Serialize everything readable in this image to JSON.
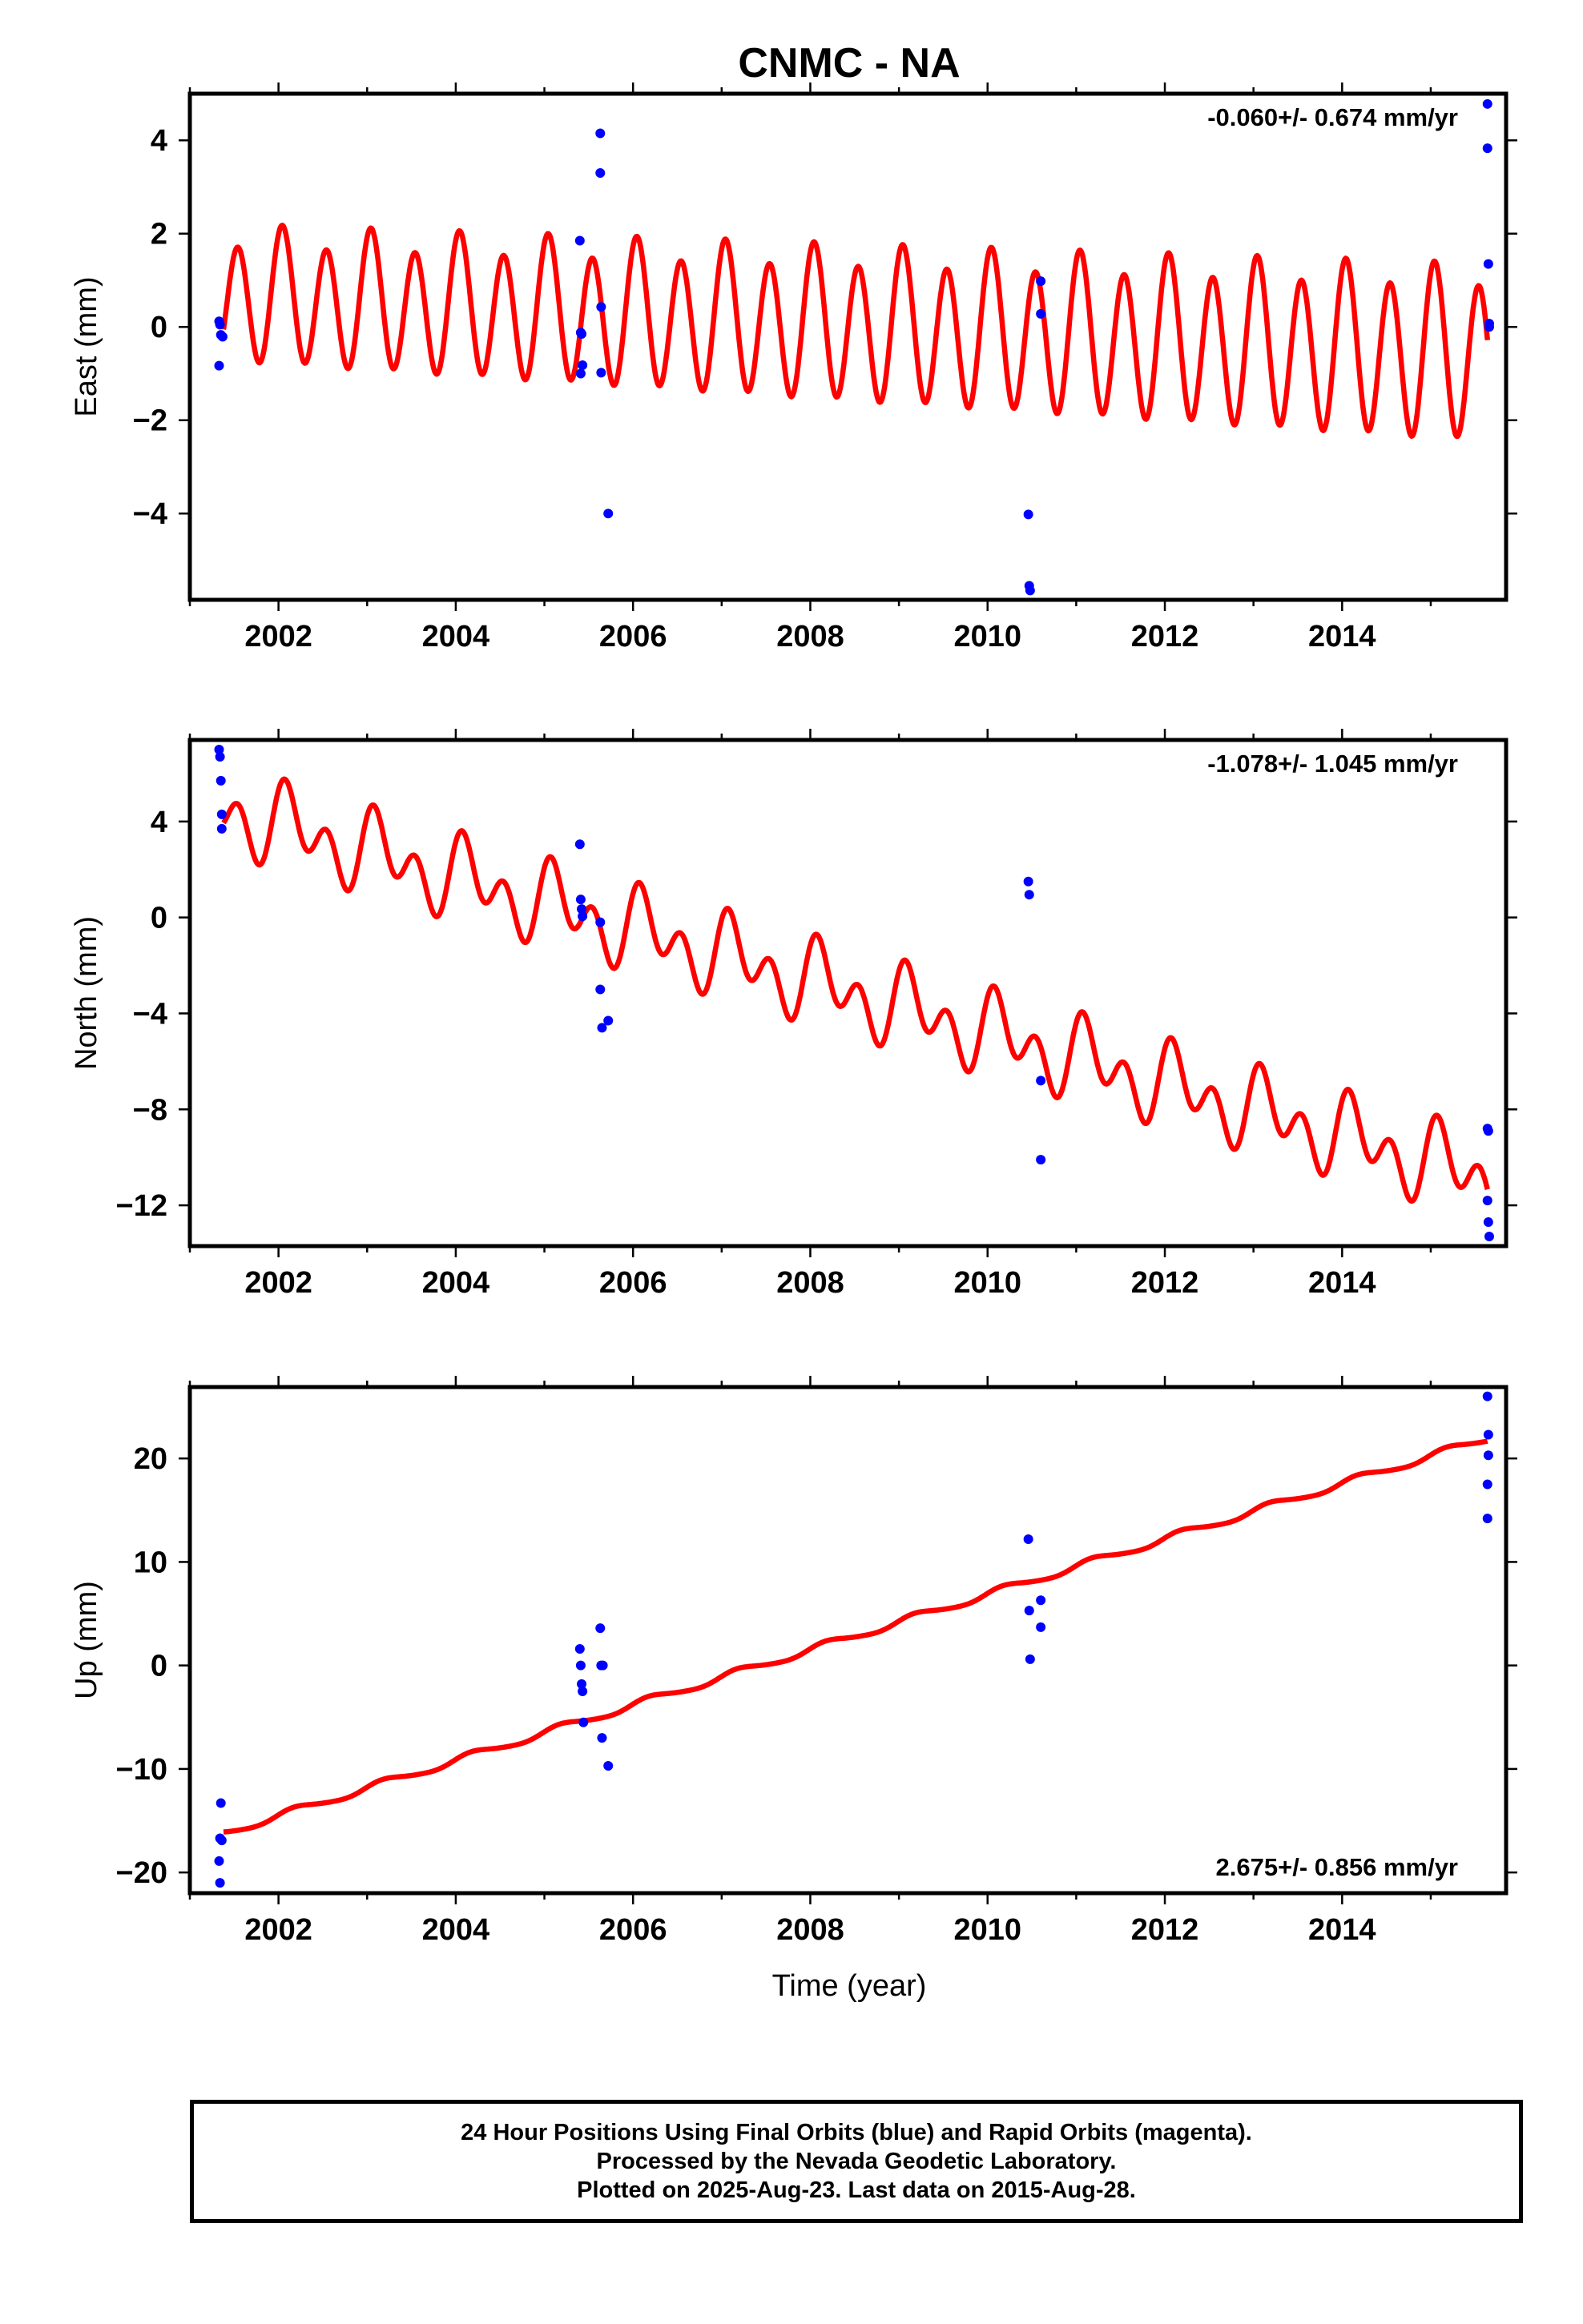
{
  "title": "CNMC - NA",
  "xlabel": "Time (year)",
  "footer": {
    "line1": "24 Hour Positions Using Final Orbits (blue) and Rapid Orbits (magenta).",
    "line2": "Processed by the Nevada Geodetic Laboratory.",
    "line3": "Plotted on 2025-Aug-23. Last data on 2015-Aug-28."
  },
  "colors": {
    "final_orbits": "#0000ff",
    "model_fit": "#ff0000",
    "frame": "#000000"
  },
  "chart_data": [
    {
      "type": "scatter",
      "component": "East",
      "ylabel": "East (mm)",
      "rate_label": "-0.060+/- 0.674 mm/yr",
      "rate_label_position": "top-right",
      "xlim": [
        2001.0,
        2015.85
      ],
      "ylim": [
        -5.85,
        5.0
      ],
      "xticks": [
        2002,
        2004,
        2006,
        2008,
        2010,
        2012,
        2014
      ],
      "xtick_labels": [
        "2002",
        "2004",
        "2006",
        "2008",
        "2010",
        "2012",
        "2014"
      ],
      "yticks": [
        -4,
        -2,
        0,
        2,
        4
      ],
      "ytick_labels": [
        "−4",
        "−2",
        "0",
        "2",
        "4"
      ],
      "points": [
        [
          2001.33,
          0.12
        ],
        [
          2001.34,
          0.05
        ],
        [
          2001.35,
          -0.17
        ],
        [
          2001.37,
          -0.21
        ],
        [
          2001.33,
          -0.83
        ],
        [
          2005.4,
          1.85
        ],
        [
          2005.41,
          -0.12
        ],
        [
          2005.42,
          -0.15
        ],
        [
          2005.43,
          -0.82
        ],
        [
          2005.41,
          -1.0
        ],
        [
          2005.63,
          4.15
        ],
        [
          2005.63,
          3.3
        ],
        [
          2005.64,
          0.43
        ],
        [
          2005.64,
          -0.98
        ],
        [
          2005.72,
          -4.0
        ],
        [
          2010.46,
          -4.02
        ],
        [
          2010.47,
          -5.55
        ],
        [
          2010.48,
          -5.65
        ],
        [
          2010.6,
          0.98
        ],
        [
          2010.6,
          0.28
        ],
        [
          2015.64,
          4.78
        ],
        [
          2015.64,
          3.83
        ],
        [
          2015.65,
          1.35
        ],
        [
          2015.66,
          0.07
        ],
        [
          2015.66,
          0.0
        ]
      ],
      "model": {
        "t_start": 2001.38,
        "t_end": 2015.64,
        "offset": 0.0,
        "trend": -0.06,
        "trend_ref": 2008.5,
        "annual_amp": 0.25,
        "annual_phase": 1.2,
        "semiannual_amp": 1.55,
        "semiannual_phase": 1.05,
        "amp_growth": 0.02,
        "center_shift": -0.03
      }
    },
    {
      "type": "scatter",
      "component": "North",
      "ylabel": "North (mm)",
      "rate_label": "-1.078+/- 1.045 mm/yr",
      "rate_label_position": "top-right",
      "xlim": [
        2001.0,
        2015.85
      ],
      "ylim": [
        -13.7,
        7.4
      ],
      "xticks": [
        2002,
        2004,
        2006,
        2008,
        2010,
        2012,
        2014
      ],
      "xtick_labels": [
        "2002",
        "2004",
        "2006",
        "2008",
        "2010",
        "2012",
        "2014"
      ],
      "yticks": [
        -12,
        -8,
        -4,
        0,
        4
      ],
      "ytick_labels": [
        "−12",
        "−8",
        "−4",
        "0",
        "4"
      ],
      "points": [
        [
          2001.33,
          7.0
        ],
        [
          2001.34,
          6.7
        ],
        [
          2001.35,
          5.7
        ],
        [
          2001.36,
          4.3
        ],
        [
          2001.36,
          3.7
        ],
        [
          2005.4,
          3.05
        ],
        [
          2005.41,
          0.75
        ],
        [
          2005.42,
          0.35
        ],
        [
          2005.43,
          0.05
        ],
        [
          2005.63,
          -0.2
        ],
        [
          2005.63,
          -3.0
        ],
        [
          2005.65,
          -4.6
        ],
        [
          2005.72,
          -4.3
        ],
        [
          2010.46,
          1.5
        ],
        [
          2010.47,
          0.95
        ],
        [
          2010.6,
          -6.8
        ],
        [
          2010.6,
          -10.1
        ],
        [
          2015.64,
          -8.8
        ],
        [
          2015.65,
          -8.9
        ],
        [
          2015.64,
          -11.8
        ],
        [
          2015.65,
          -12.7
        ],
        [
          2015.66,
          -13.3
        ]
      ],
      "model": {
        "t_start": 2001.38,
        "t_end": 2015.64,
        "offset": -3.2,
        "trend": -1.078,
        "trend_ref": 2008.5,
        "annual_amp": 1.0,
        "annual_phase": 0.6,
        "semiannual_amp": 1.2,
        "semiannual_phase": 0.9,
        "amp_growth": 0.0,
        "center_shift": 0.0
      }
    },
    {
      "type": "scatter",
      "component": "Up",
      "ylabel": "Up (mm)",
      "rate_label": "2.675+/- 0.856 mm/yr",
      "rate_label_position": "bottom-right",
      "xlim": [
        2001.0,
        2015.85
      ],
      "ylim": [
        -22.0,
        26.9
      ],
      "xticks": [
        2002,
        2004,
        2006,
        2008,
        2010,
        2012,
        2014
      ],
      "xtick_labels": [
        "2002",
        "2004",
        "2006",
        "2008",
        "2010",
        "2012",
        "2014"
      ],
      "yticks": [
        -20,
        -10,
        0,
        10,
        20
      ],
      "ytick_labels": [
        "−20",
        "−10",
        "0",
        "10",
        "20"
      ],
      "points": [
        [
          2001.35,
          -13.3
        ],
        [
          2001.34,
          -16.7
        ],
        [
          2001.36,
          -16.9
        ],
        [
          2001.33,
          -18.9
        ],
        [
          2001.34,
          -21.0
        ],
        [
          2005.4,
          1.6
        ],
        [
          2005.41,
          0.0
        ],
        [
          2005.42,
          -1.8
        ],
        [
          2005.43,
          -2.5
        ],
        [
          2005.44,
          -5.5
        ],
        [
          2005.63,
          3.6
        ],
        [
          2005.64,
          0.0
        ],
        [
          2005.66,
          0.0
        ],
        [
          2005.65,
          -7.0
        ],
        [
          2005.72,
          -9.7
        ],
        [
          2010.46,
          12.2
        ],
        [
          2010.47,
          5.3
        ],
        [
          2010.48,
          0.6
        ],
        [
          2010.6,
          6.3
        ],
        [
          2010.6,
          3.7
        ],
        [
          2015.64,
          26.0
        ],
        [
          2015.65,
          22.3
        ],
        [
          2015.65,
          20.3
        ],
        [
          2015.64,
          17.5
        ],
        [
          2015.64,
          14.2
        ]
      ],
      "model": {
        "t_start": 2001.38,
        "t_end": 2015.64,
        "offset": 2.85,
        "trend": 2.675,
        "trend_ref": 2008.5,
        "annual_amp": 0.35,
        "annual_phase": 0.3,
        "semiannual_amp": 0.05,
        "semiannual_phase": 0.0,
        "amp_growth": 0.0,
        "center_shift": 0.0
      }
    }
  ]
}
